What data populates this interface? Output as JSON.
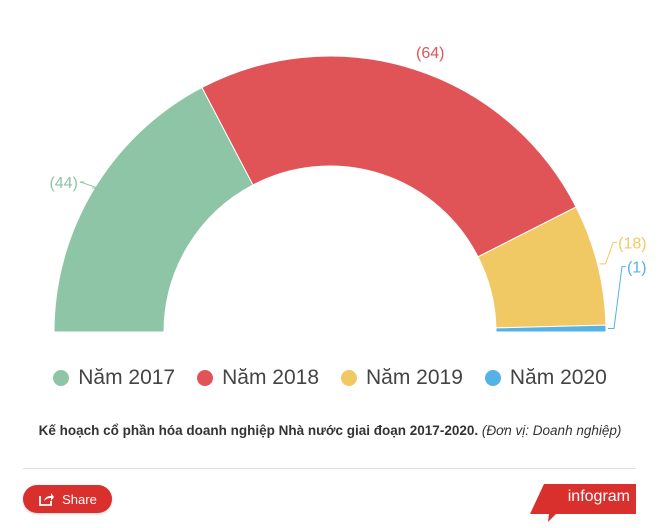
{
  "chart_data": {
    "type": "pie",
    "variant": "semi-donut",
    "categories": [
      "Năm 2017",
      "Năm 2018",
      "Năm 2019",
      "Năm 2020"
    ],
    "values": [
      44,
      64,
      18,
      1
    ],
    "data_labels": [
      "(44)",
      "(64)",
      "(18)",
      "(1)"
    ],
    "colors": [
      "#8dc5a6",
      "#e05458",
      "#f0c965",
      "#55b2e5"
    ],
    "legend_position": "bottom",
    "caption": "Kế hoạch cổ phần hóa doanh nghiệp Nhà nước giai đoạn 2017-2020.",
    "caption_unit": "(Đơn vị: Doanh nghiệp)"
  },
  "footer": {
    "share_label": "Share",
    "brand": "infogram",
    "brand_color": "#d9302e"
  }
}
